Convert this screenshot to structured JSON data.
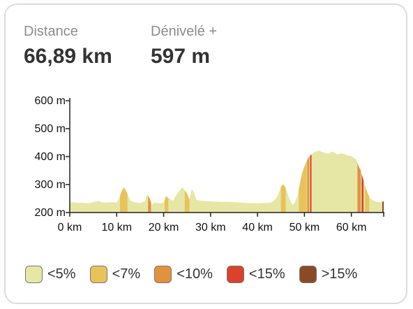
{
  "stats": {
    "distance": {
      "label": "Distance",
      "value": "66,89 km"
    },
    "elevation_gain": {
      "label": "Dénivelé +",
      "value": "597 m"
    }
  },
  "legend": [
    {
      "label": "<5%",
      "color": "#e6e7a5"
    },
    {
      "label": "<7%",
      "color": "#e8c35a"
    },
    {
      "label": "<10%",
      "color": "#e0923e"
    },
    {
      "label": "<15%",
      "color": "#d9432e"
    },
    {
      "label": ">15%",
      "color": "#8b4a26"
    }
  ],
  "chart_data": {
    "type": "area",
    "xlabel": "",
    "ylabel": "",
    "x_unit": "km",
    "y_unit": "m",
    "xlim": [
      0,
      66.89
    ],
    "ylim": [
      200,
      600
    ],
    "x_ticks": [
      0,
      10,
      20,
      30,
      40,
      50,
      60
    ],
    "x_tick_labels": [
      "0 km",
      "10 km",
      "20 km",
      "30 km",
      "40 km",
      "50 km",
      "60 km"
    ],
    "y_ticks": [
      200,
      300,
      400,
      500,
      600
    ],
    "y_tick_labels": [
      "200 m",
      "300 m",
      "400 m",
      "500 m",
      "600 m"
    ],
    "grid": false,
    "series": [
      {
        "x": [
          0,
          2,
          4,
          5,
          6,
          7,
          8,
          9,
          10,
          10.5,
          11,
          11.5,
          12,
          12.5,
          13,
          14,
          15,
          16,
          16.5,
          17,
          17.5,
          18,
          19,
          20,
          20.5,
          21,
          22,
          23,
          24,
          25,
          25.5,
          26,
          26.5,
          27,
          28,
          30,
          32,
          34,
          36,
          38,
          40,
          42,
          43,
          44,
          44.5,
          45,
          45.5,
          46,
          46.5,
          47,
          47.5,
          48,
          48.5,
          49,
          49.5,
          50,
          50.5,
          51,
          51.5,
          52,
          53,
          54,
          55,
          56,
          57,
          58,
          59,
          60,
          61,
          61.5,
          62,
          62.5,
          63,
          63.5,
          64,
          65,
          66,
          66.89
        ],
        "y": [
          237,
          235,
          233,
          237,
          242,
          236,
          236,
          237,
          236,
          250,
          275,
          290,
          278,
          258,
          242,
          236,
          234,
          240,
          266,
          250,
          228,
          236,
          233,
          235,
          258,
          252,
          242,
          270,
          290,
          268,
          246,
          285,
          270,
          246,
          242,
          240,
          238,
          238,
          236,
          234,
          233,
          234,
          237,
          250,
          270,
          292,
          302,
          288,
          264,
          240,
          226,
          236,
          260,
          300,
          340,
          365,
          385,
          400,
          408,
          415,
          422,
          415,
          410,
          418,
          408,
          412,
          405,
          402,
          390,
          368,
          350,
          320,
          290,
          268,
          250,
          240,
          236,
          240
        ],
        "steep_segments": [
          {
            "x": [
              10.7,
              12.3
            ],
            "class": "<7%"
          },
          {
            "x": [
              16.7,
              17.3
            ],
            "class": "<10%"
          },
          {
            "x": [
              20.2,
              21.0
            ],
            "class": "<7%"
          },
          {
            "x": [
              24.5,
              25.5
            ],
            "class": "<7%"
          },
          {
            "x": [
              45.0,
              46.0
            ],
            "class": "<7%"
          },
          {
            "x": [
              48.8,
              50.5
            ],
            "class": "<7%"
          },
          {
            "x": [
              50.6,
              51.0
            ],
            "class": "<10%"
          },
          {
            "x": [
              51.2,
              51.5
            ],
            "class": "<15%"
          },
          {
            "x": [
              61.3,
              62.0
            ],
            "class": "<10%"
          },
          {
            "x": [
              62.2,
              62.6
            ],
            "class": "<15%"
          },
          {
            "x": [
              62.9,
              63.8
            ],
            "class": "<7%"
          },
          {
            "x": [
              66.6,
              66.89
            ],
            "class": ">15%"
          }
        ]
      }
    ]
  }
}
